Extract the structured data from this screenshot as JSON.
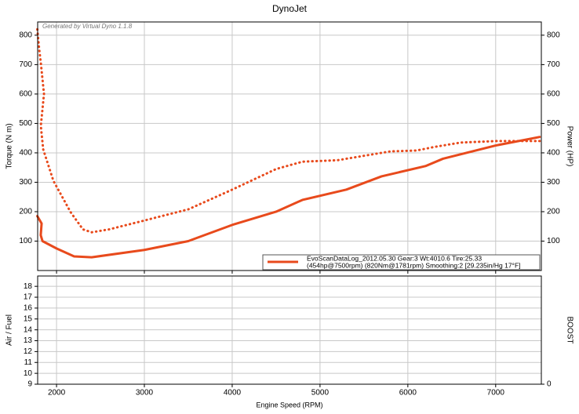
{
  "chart_data": [
    {
      "type": "line",
      "title": "DynoJet",
      "annotation": "Generated by Virtual Dyno 1.1.8",
      "ylabel": "Torque (N m)",
      "y2label": "Power (HP)",
      "xlim": [
        1785,
        7520
      ],
      "xticks": [
        2000,
        3000,
        4000,
        5000,
        6000,
        7000
      ],
      "ylim": [
        0,
        845
      ],
      "yticks": [
        100,
        200,
        300,
        400,
        500,
        600,
        700,
        800
      ],
      "y2lim": [
        0,
        845
      ],
      "y2ticks": [
        100,
        200,
        300,
        400,
        500,
        600,
        700,
        800
      ],
      "grid": true,
      "legend": {
        "position": "lower right",
        "text": [
          "EvoScanDataLog_2012.05.30 Gear:3 Wt:4010.6 Tire:25.33",
          "(454hp@7500rpm) (820Nm@1781rpm) Smoothing:2 [29.235in/Hg 17°F]"
        ]
      },
      "series": [
        {
          "color": "#e84a1c",
          "style": "dotted",
          "axis": "y",
          "x": [
            1781,
            1800,
            1821,
            1857,
            1821,
            1848,
            1964,
            2161,
            2300,
            2400,
            2600,
            3000,
            3500,
            4000,
            4500,
            4800,
            5200,
            5500,
            5800,
            6100,
            6300,
            6600,
            7000,
            7500
          ],
          "values": [
            820,
            760,
            706,
            600,
            492,
            412,
            305,
            198,
            140,
            130,
            140,
            170,
            208,
            275,
            345,
            370,
            375,
            390,
            405,
            408,
            420,
            435,
            440,
            440
          ]
        },
        {
          "color": "#e84a1c",
          "style": "solid",
          "axis": "y2",
          "x": [
            1781,
            1830,
            1820,
            1840,
            2000,
            2200,
            2400,
            3000,
            3500,
            4000,
            4500,
            4800,
            5300,
            5700,
            6200,
            6400,
            7000,
            7500
          ],
          "values": [
            185,
            160,
            120,
            100,
            75,
            48,
            45,
            70,
            100,
            155,
            200,
            240,
            275,
            320,
            355,
            380,
            425,
            454
          ]
        }
      ]
    },
    {
      "type": "line",
      "ylabel": "Air / Fuel",
      "y2label": "BOOST",
      "xlabel": "Engine Speed (RPM)",
      "xlim": [
        1785,
        7520
      ],
      "xticks": [
        2000,
        3000,
        4000,
        5000,
        6000,
        7000
      ],
      "ylim": [
        9,
        18.95
      ],
      "yticks": [
        9,
        10,
        11,
        12,
        13,
        14,
        15,
        16,
        17,
        18
      ],
      "y2lim": [
        0,
        10
      ],
      "y2ticks": [
        0
      ],
      "grid": true,
      "series": []
    }
  ]
}
